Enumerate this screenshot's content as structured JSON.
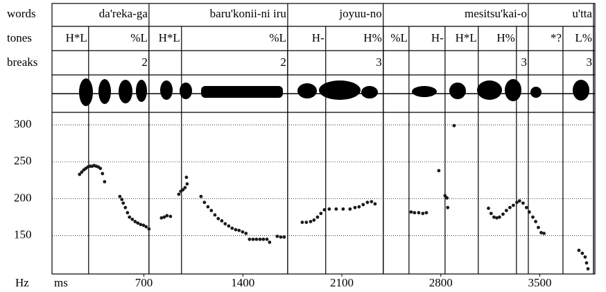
{
  "chart_data": {
    "type": "scatter",
    "x_label": "ms",
    "y_label": "Hz",
    "xlim": [
      50,
      3890
    ],
    "xticks": [
      700,
      1400,
      2100,
      2800,
      3500
    ],
    "ylim": [
      98,
      317
    ],
    "yticks": [
      150,
      200,
      250,
      300
    ],
    "grid": true,
    "tiers": [
      {
        "name": "words",
        "labels": [
          "da'reka-ga",
          "baru'konii-ni iru",
          "joyuu-no",
          "mesitsu'kai-o",
          "u'tta"
        ],
        "times": [
          736,
          1717,
          2393,
          3419,
          3880
        ]
      },
      {
        "name": "tones",
        "labels": [
          "H*L",
          "%L",
          "H*L",
          "%L",
          "H-",
          "H%",
          "%L",
          "H-",
          "H*L",
          "H%",
          "*?",
          "L%"
        ],
        "times": [
          309,
          736,
          966,
          1717,
          1986,
          2393,
          2575,
          2830,
          3065,
          3335,
          3664,
          3880
        ]
      },
      {
        "name": "breaks",
        "labels": [
          2,
          2,
          3,
          3,
          3
        ],
        "times": [
          736,
          1717,
          2393,
          3419,
          3880
        ]
      }
    ],
    "series": [
      {
        "color": "#1a1a1a",
        "x": [
          245,
          260,
          275,
          289,
          304,
          319,
          334,
          348,
          363,
          378,
          392,
          407,
          422,
          530,
          544,
          554,
          569,
          584,
          598,
          618,
          638,
          657,
          677,
          697,
          716,
          736,
          824,
          844,
          863,
          888,
          947,
          961,
          976,
          991,
          1006,
          1001,
          1104,
          1128,
          1153,
          1177,
          1202,
          1226,
          1251,
          1275,
          1300,
          1324,
          1349,
          1373,
          1398,
          1422,
          1447,
          1472,
          1496,
          1521,
          1545,
          1570,
          1589,
          1643,
          1668,
          1692,
          1820,
          1849,
          1879,
          1903,
          1928,
          1952,
          1977,
          2011,
          2060,
          2109,
          2158,
          2193,
          2222,
          2251,
          2281,
          2310,
          2335,
          2590,
          2614,
          2644,
          2673,
          2698,
          2786,
          2830,
          2844,
          2849,
          2894,
          3137,
          3156,
          3176,
          3196,
          3215,
          3240,
          3264,
          3289,
          3313,
          3338,
          3357,
          3382,
          3406,
          3426,
          3451,
          3471,
          3490,
          3510,
          3530,
          3777,
          3801,
          3821,
          3831,
          3841
        ],
        "values": [
          233,
          236,
          239,
          241,
          243,
          244,
          244,
          245,
          244,
          243,
          241,
          234,
          223,
          203,
          199,
          194,
          188,
          181,
          175,
          172,
          169,
          167,
          165,
          164,
          162,
          159,
          174,
          175,
          177,
          176,
          206,
          210,
          212,
          215,
          220,
          229,
          203,
          195,
          189,
          184,
          178,
          173,
          170,
          166,
          163,
          160,
          158,
          157,
          155,
          153,
          145,
          145,
          145,
          145,
          145,
          145,
          141,
          149,
          148,
          148,
          168,
          168,
          169,
          171,
          175,
          180,
          185,
          186,
          186,
          186,
          186,
          188,
          189,
          192,
          195,
          196,
          193,
          182,
          181,
          181,
          180,
          181,
          238,
          204,
          201,
          188,
          299,
          187,
          180,
          175,
          174,
          175,
          179,
          184,
          188,
          191,
          195,
          197,
          194,
          188,
          182,
          175,
          169,
          161,
          154,
          153,
          130,
          126,
          121,
          113,
          105
        ]
      }
    ]
  }
}
